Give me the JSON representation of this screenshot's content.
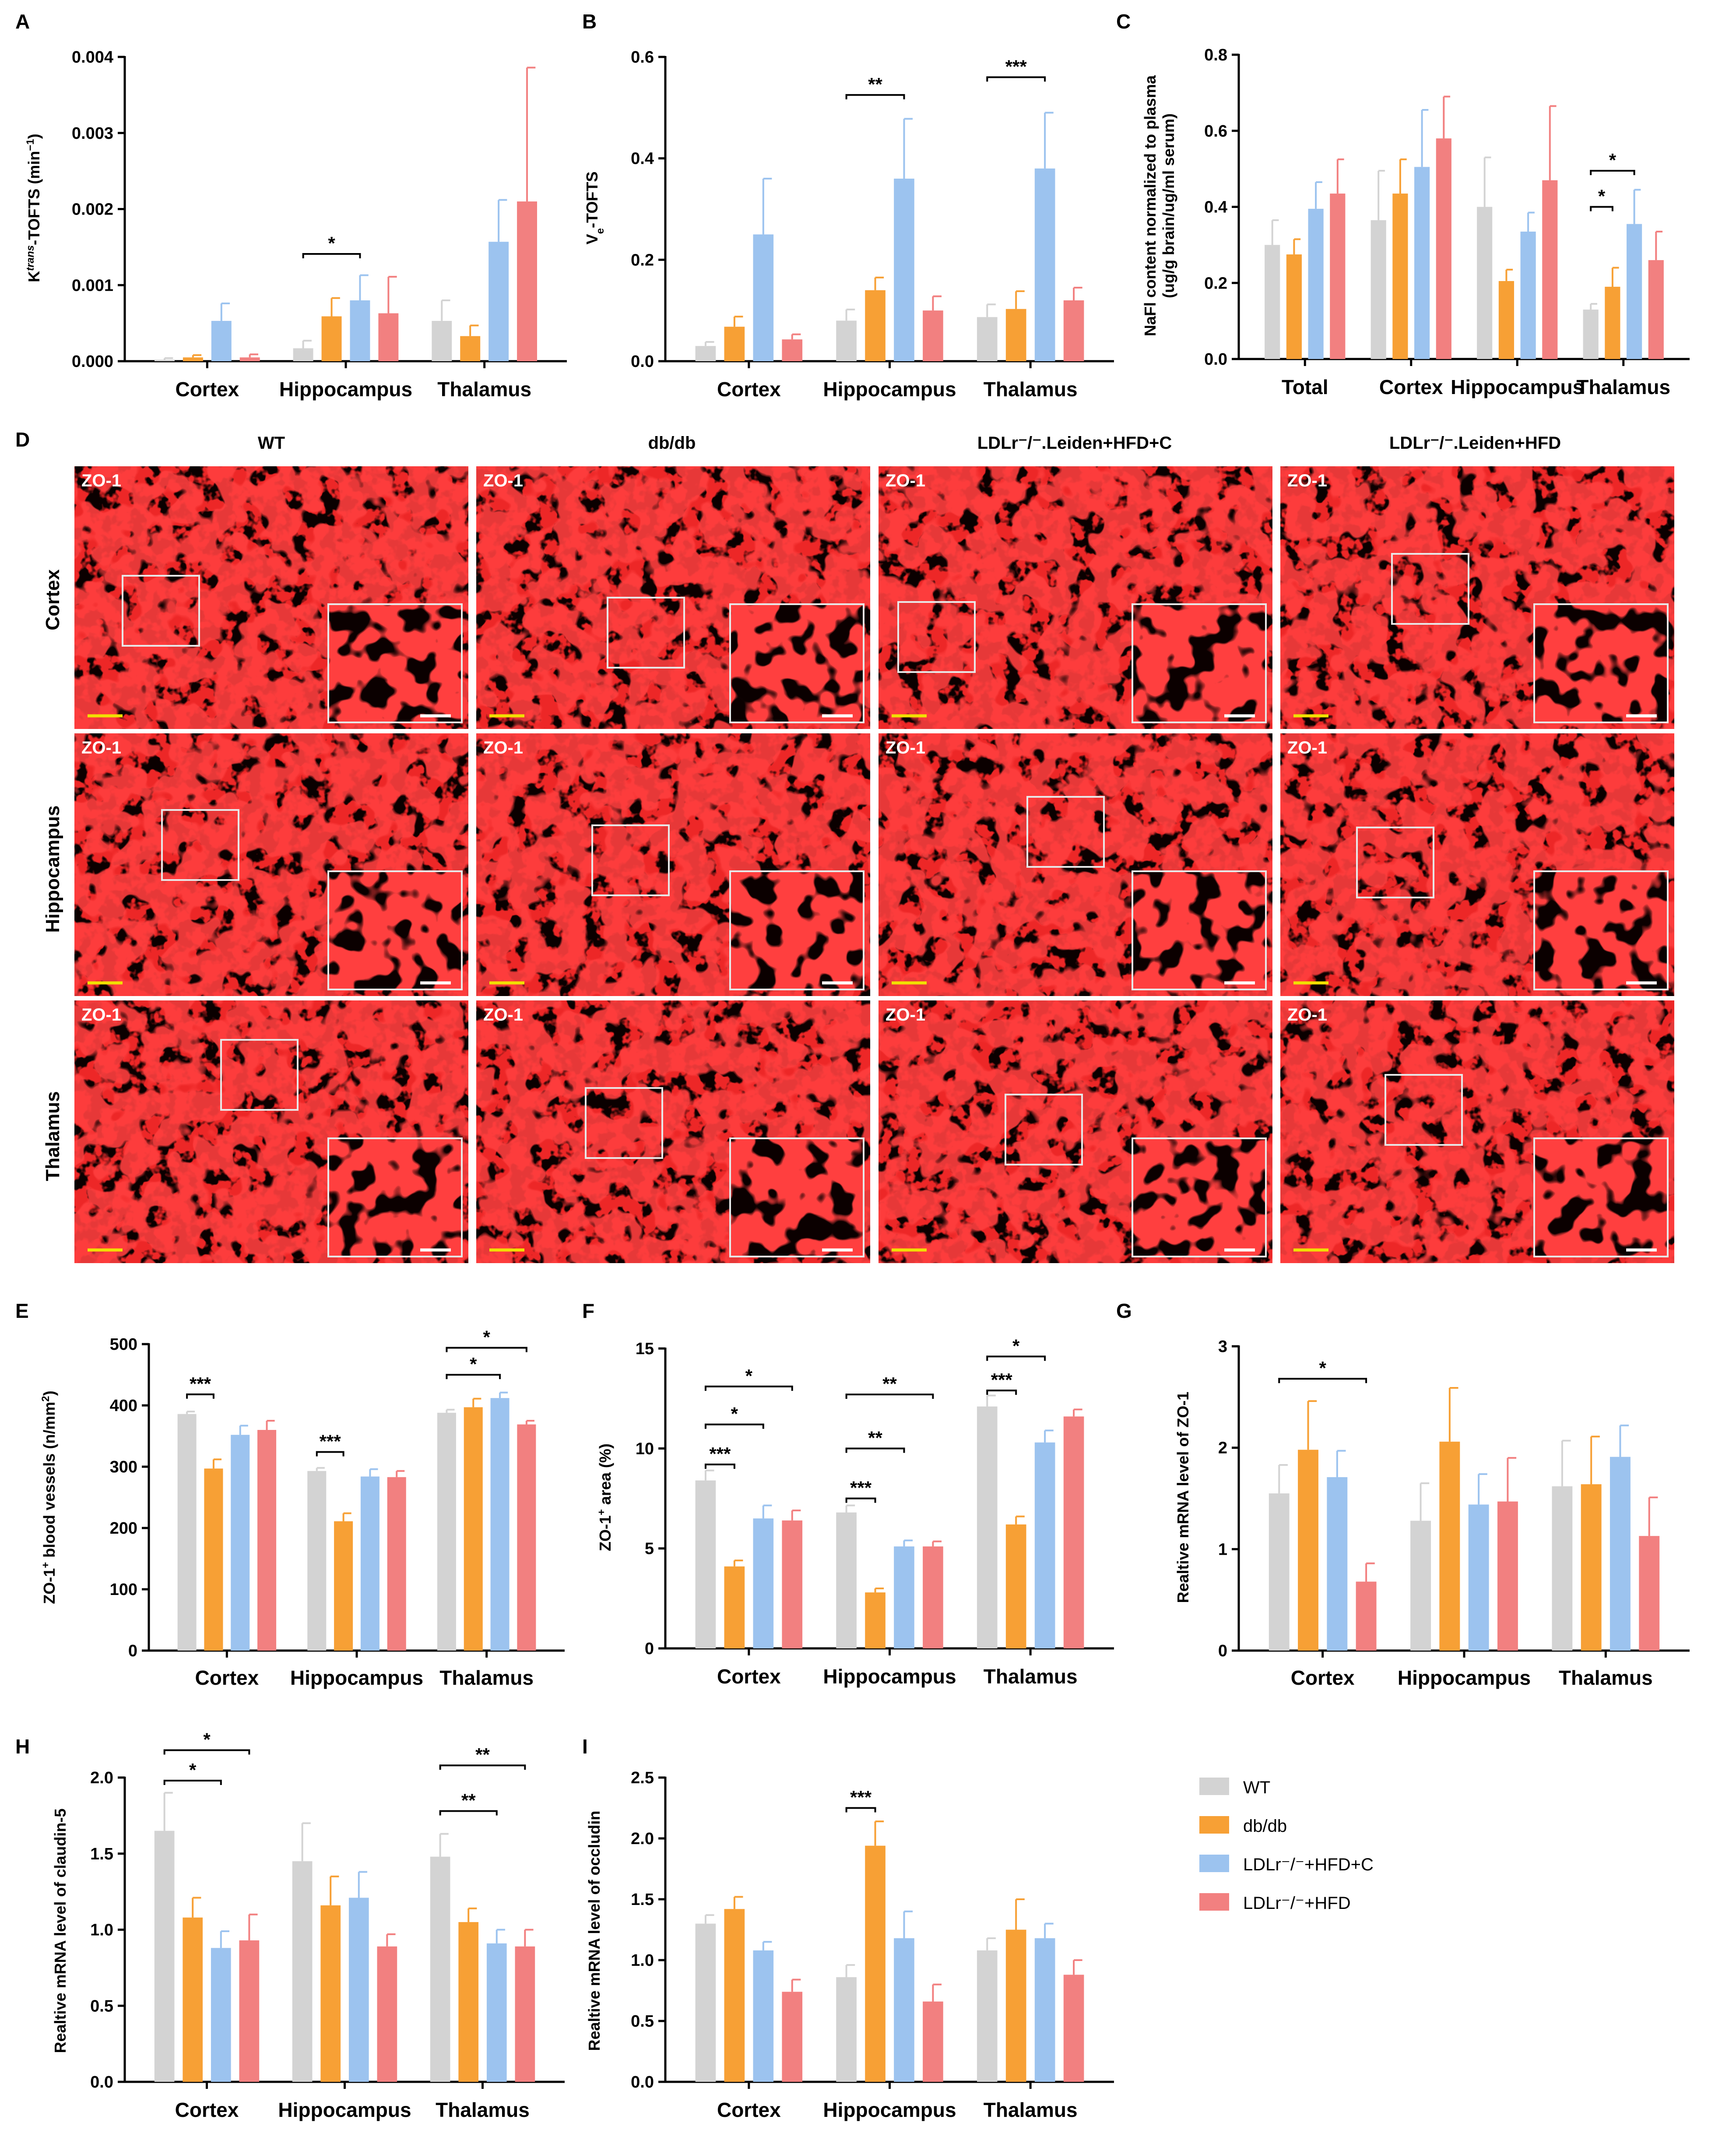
{
  "colors": {
    "WT": "#d3d3d3",
    "db/db": "#f7a035",
    "LDLr-HFD+C": "#9cc3ef",
    "LDLr-HFD": "#f28080"
  },
  "legend": {
    "items": [
      {
        "label": "WT",
        "color_key": "WT"
      },
      {
        "label": "db/db",
        "color_key": "db/db"
      },
      {
        "label": "LDLr⁻/⁻+HFD+C",
        "color_key": "LDLr-HFD+C"
      },
      {
        "label": "LDLr⁻/⁻+HFD",
        "color_key": "LDLr-HFD"
      }
    ]
  },
  "microscopy": {
    "panel_letter": "D",
    "columns": [
      "WT",
      "db/db",
      "LDLr⁻/⁻.Leiden+HFD+C",
      "LDLr⁻/⁻.Leiden+HFD"
    ],
    "rows": [
      "Cortex",
      "Hippocampus",
      "Thalamus"
    ],
    "stain_label": "ZO-1"
  },
  "chart_data": [
    {
      "id": "A",
      "type": "bar",
      "panel_letter": "A",
      "categories": [
        "Cortex",
        "Hippocampus",
        "Thalamus"
      ],
      "ylabel": "K<trans>-TOFTS (min⁻¹)",
      "ylabel_parts": [
        "K",
        "trans",
        "-TOFTS (min",
        "−1",
        ")"
      ],
      "ylim": [
        0,
        0.004
      ],
      "ticks": [
        "0.000",
        "0.001",
        "0.002",
        "0.003",
        "0.004"
      ],
      "tick_values": [
        0,
        0.001,
        0.002,
        0.003,
        0.004
      ],
      "series": [
        {
          "name": "WT",
          "values": [
            2e-05,
            0.00017,
            0.00053
          ],
          "errors": [
            2e-05,
            0.0001,
            0.00027
          ]
        },
        {
          "name": "db/db",
          "values": [
            5e-05,
            0.00059,
            0.00033
          ],
          "errors": [
            3e-05,
            0.00024,
            0.00014
          ]
        },
        {
          "name": "LDLr-HFD+C",
          "values": [
            0.00053,
            0.0008,
            0.00157
          ],
          "errors": [
            0.00023,
            0.00033,
            0.00055
          ]
        },
        {
          "name": "LDLr-HFD",
          "values": [
            5e-05,
            0.00063,
            0.0021
          ],
          "errors": [
            4e-05,
            0.00048,
            0.00176
          ]
        }
      ],
      "significance": [
        {
          "label": "*",
          "cat": 1,
          "from": 0,
          "to": 2,
          "y": 0.00141
        }
      ]
    },
    {
      "id": "B",
      "type": "bar",
      "panel_letter": "B",
      "categories": [
        "Cortex",
        "Hippocampus",
        "Thalamus"
      ],
      "ylabel": "Ve-TOFTS",
      "ylabel_parts": [
        "V",
        "e",
        "-TOFTS"
      ],
      "ylim": [
        0,
        0.6
      ],
      "ticks": [
        "0.0",
        "0.2",
        "0.4",
        "0.6"
      ],
      "tick_values": [
        0,
        0.2,
        0.4,
        0.6
      ],
      "series": [
        {
          "name": "WT",
          "values": [
            0.03,
            0.08,
            0.087
          ],
          "errors": [
            0.008,
            0.022,
            0.025
          ]
        },
        {
          "name": "db/db",
          "values": [
            0.068,
            0.14,
            0.103
          ],
          "errors": [
            0.02,
            0.025,
            0.035
          ]
        },
        {
          "name": "LDLr-HFD+C",
          "values": [
            0.25,
            0.36,
            0.38
          ],
          "errors": [
            0.11,
            0.118,
            0.11
          ]
        },
        {
          "name": "LDLr-HFD",
          "values": [
            0.043,
            0.1,
            0.12
          ],
          "errors": [
            0.01,
            0.028,
            0.025
          ]
        }
      ],
      "significance": [
        {
          "label": "**",
          "cat": 1,
          "from": 0,
          "to": 2,
          "y": 0.525
        },
        {
          "label": "***",
          "cat": 2,
          "from": 0,
          "to": 2,
          "y": 0.56
        }
      ]
    },
    {
      "id": "C",
      "type": "bar",
      "panel_letter": "C",
      "categories": [
        "Total",
        "Cortex",
        "Hippocampus",
        "Thalamus"
      ],
      "ylabel": "NaFl content normalized to plasma (ug/g brain/ug/ml serum)",
      "ylabel_lines": [
        "NaFl content normalized to plasma",
        "(ug/g brain/ug/ml serum)"
      ],
      "ylim": [
        0,
        0.8
      ],
      "ticks": [
        "0.0",
        "0.2",
        "0.4",
        "0.6",
        "0.8"
      ],
      "tick_values": [
        0,
        0.2,
        0.4,
        0.6,
        0.8
      ],
      "series": [
        {
          "name": "WT",
          "values": [
            0.3,
            0.365,
            0.4,
            0.13
          ],
          "errors": [
            0.065,
            0.13,
            0.13,
            0.015
          ]
        },
        {
          "name": "db/db",
          "values": [
            0.275,
            0.435,
            0.205,
            0.19
          ],
          "errors": [
            0.04,
            0.09,
            0.03,
            0.05
          ]
        },
        {
          "name": "LDLr-HFD+C",
          "values": [
            0.395,
            0.505,
            0.335,
            0.355
          ],
          "errors": [
            0.07,
            0.15,
            0.05,
            0.09
          ]
        },
        {
          "name": "LDLr-HFD",
          "values": [
            0.435,
            0.58,
            0.47,
            0.26
          ],
          "errors": [
            0.09,
            0.11,
            0.195,
            0.075
          ]
        }
      ],
      "significance": [
        {
          "label": "*",
          "cat": 3,
          "from": 0,
          "to": 2,
          "y": 0.495
        },
        {
          "label": "*",
          "cat": 3,
          "from": 0,
          "to": 1,
          "y": 0.4
        }
      ]
    },
    {
      "id": "E",
      "type": "bar",
      "panel_letter": "E",
      "categories": [
        "Cortex",
        "Hippocampus",
        "Thalamus"
      ],
      "ylabel": "ZO-1+ blood vessels (n/mm2)",
      "ylabel_parts": [
        "ZO-1",
        "+",
        " blood vessels (n/mm",
        "2",
        ")"
      ],
      "ylim": [
        0,
        500
      ],
      "ticks": [
        "0",
        "100",
        "200",
        "300",
        "400",
        "500"
      ],
      "tick_values": [
        0,
        100,
        200,
        300,
        400,
        500
      ],
      "series": [
        {
          "name": "WT",
          "values": [
            386,
            293,
            388
          ],
          "errors": [
            4,
            5,
            5
          ]
        },
        {
          "name": "db/db",
          "values": [
            297,
            211,
            397
          ],
          "errors": [
            15,
            13,
            14
          ]
        },
        {
          "name": "LDLr-HFD+C",
          "values": [
            352,
            284,
            412
          ],
          "errors": [
            15,
            12,
            9
          ]
        },
        {
          "name": "LDLr-HFD",
          "values": [
            360,
            283,
            369
          ],
          "errors": [
            15,
            10,
            6
          ]
        }
      ],
      "significance": [
        {
          "label": "***",
          "cat": 0,
          "from": 0,
          "to": 1,
          "y": 418
        },
        {
          "label": "***",
          "cat": 1,
          "from": 0,
          "to": 1,
          "y": 324
        },
        {
          "label": "*",
          "cat": 2,
          "from": 0,
          "to": 2,
          "y": 450
        },
        {
          "label": "*",
          "cat": 2,
          "from": 0,
          "to": 3,
          "y": 494
        }
      ]
    },
    {
      "id": "F",
      "type": "bar",
      "panel_letter": "F",
      "categories": [
        "Cortex",
        "Hippocampus",
        "Thalamus"
      ],
      "ylabel": "ZO-1+ area (%)",
      "ylabel_parts": [
        "ZO-1",
        "+",
        " area (%)"
      ],
      "ylim": [
        0,
        15
      ],
      "ticks": [
        "0",
        "5",
        "10",
        "15"
      ],
      "tick_values": [
        0,
        5,
        10,
        15
      ],
      "series": [
        {
          "name": "WT",
          "values": [
            8.4,
            6.8,
            12.1
          ],
          "errors": [
            0.5,
            0.35,
            0.55
          ]
        },
        {
          "name": "db/db",
          "values": [
            4.1,
            2.8,
            6.2
          ],
          "errors": [
            0.3,
            0.2,
            0.4
          ]
        },
        {
          "name": "LDLr-HFD+C",
          "values": [
            6.5,
            5.1,
            10.3
          ],
          "errors": [
            0.65,
            0.3,
            0.6
          ]
        },
        {
          "name": "LDLr-HFD",
          "values": [
            6.4,
            5.1,
            11.6
          ],
          "errors": [
            0.5,
            0.25,
            0.35
          ]
        }
      ],
      "significance": [
        {
          "label": "***",
          "cat": 0,
          "from": 0,
          "to": 1,
          "y": 9.2
        },
        {
          "label": "*",
          "cat": 0,
          "from": 0,
          "to": 2,
          "y": 11.2
        },
        {
          "label": "*",
          "cat": 0,
          "from": 0,
          "to": 3,
          "y": 13.1
        },
        {
          "label": "***",
          "cat": 1,
          "from": 0,
          "to": 1,
          "y": 7.5
        },
        {
          "label": "**",
          "cat": 1,
          "from": 0,
          "to": 2,
          "y": 10
        },
        {
          "label": "**",
          "cat": 1,
          "from": 0,
          "to": 3,
          "y": 12.7
        },
        {
          "label": "***",
          "cat": 2,
          "from": 0,
          "to": 1,
          "y": 12.9
        },
        {
          "label": "*",
          "cat": 2,
          "from": 0,
          "to": 2,
          "y": 14.6
        }
      ]
    },
    {
      "id": "G",
      "type": "bar",
      "panel_letter": "G",
      "categories": [
        "Cortex",
        "Hippocampus",
        "Thalamus"
      ],
      "ylabel": "Realtive mRNA level of ZO-1",
      "ylim": [
        0,
        3
      ],
      "ticks": [
        "0",
        "1",
        "2",
        "3"
      ],
      "tick_values": [
        0,
        1,
        2,
        3
      ],
      "series": [
        {
          "name": "WT",
          "values": [
            1.55,
            1.28,
            1.62
          ],
          "errors": [
            0.28,
            0.37,
            0.45
          ]
        },
        {
          "name": "db/db",
          "values": [
            1.98,
            2.06,
            1.64
          ],
          "errors": [
            0.48,
            0.53,
            0.47
          ]
        },
        {
          "name": "LDLr-HFD+C",
          "values": [
            1.71,
            1.44,
            1.91
          ],
          "errors": [
            0.26,
            0.3,
            0.31
          ]
        },
        {
          "name": "LDLr-HFD",
          "values": [
            0.68,
            1.47,
            1.13
          ],
          "errors": [
            0.18,
            0.43,
            0.38
          ]
        }
      ],
      "significance": [
        {
          "label": "*",
          "cat": 0,
          "from": 0,
          "to": 3,
          "y": 2.68
        }
      ]
    },
    {
      "id": "H",
      "type": "bar",
      "panel_letter": "H",
      "categories": [
        "Cortex",
        "Hippocampus",
        "Thalamus"
      ],
      "ylabel": "Realtive mRNA level of claudin-5",
      "ylim": [
        0,
        2.0
      ],
      "ticks": [
        "0.0",
        "0.5",
        "1.0",
        "1.5",
        "2.0"
      ],
      "tick_values": [
        0,
        0.5,
        1.0,
        1.5,
        2.0
      ],
      "series": [
        {
          "name": "WT",
          "values": [
            1.65,
            1.45,
            1.48
          ],
          "errors": [
            0.25,
            0.25,
            0.15
          ]
        },
        {
          "name": "db/db",
          "values": [
            1.08,
            1.16,
            1.05
          ],
          "errors": [
            0.13,
            0.19,
            0.09
          ]
        },
        {
          "name": "LDLr-HFD+C",
          "values": [
            0.88,
            1.21,
            0.91
          ],
          "errors": [
            0.11,
            0.17,
            0.09
          ]
        },
        {
          "name": "LDLr-HFD",
          "values": [
            0.93,
            0.89,
            0.89
          ],
          "errors": [
            0.17,
            0.08,
            0.11
          ]
        }
      ],
      "significance": [
        {
          "label": "*",
          "cat": 0,
          "from": 0,
          "to": 2,
          "y": 1.98
        },
        {
          "label": "*",
          "cat": 0,
          "from": 0,
          "to": 3,
          "y": 2.18
        },
        {
          "label": "**",
          "cat": 2,
          "from": 0,
          "to": 2,
          "y": 1.78
        },
        {
          "label": "**",
          "cat": 2,
          "from": 0,
          "to": 3,
          "y": 2.08
        }
      ]
    },
    {
      "id": "I",
      "type": "bar",
      "panel_letter": "I",
      "categories": [
        "Cortex",
        "Hippocampus",
        "Thalamus"
      ],
      "ylabel": "Realtive mRNA level of occludin",
      "ylim": [
        0,
        2.5
      ],
      "ticks": [
        "0.0",
        "0.5",
        "1.0",
        "1.5",
        "2.0",
        "2.5"
      ],
      "tick_values": [
        0,
        0.5,
        1.0,
        1.5,
        2.0,
        2.5
      ],
      "series": [
        {
          "name": "WT",
          "values": [
            1.3,
            0.86,
            1.08
          ],
          "errors": [
            0.07,
            0.1,
            0.1
          ]
        },
        {
          "name": "db/db",
          "values": [
            1.42,
            1.94,
            1.25
          ],
          "errors": [
            0.1,
            0.2,
            0.25
          ]
        },
        {
          "name": "LDLr-HFD+C",
          "values": [
            1.08,
            1.18,
            1.18
          ],
          "errors": [
            0.07,
            0.22,
            0.12
          ]
        },
        {
          "name": "LDLr-HFD",
          "values": [
            0.74,
            0.66,
            0.88
          ],
          "errors": [
            0.1,
            0.14,
            0.12
          ]
        }
      ],
      "significance": [
        {
          "label": "***",
          "cat": 1,
          "from": 0,
          "to": 1,
          "y": 2.25
        }
      ]
    }
  ]
}
